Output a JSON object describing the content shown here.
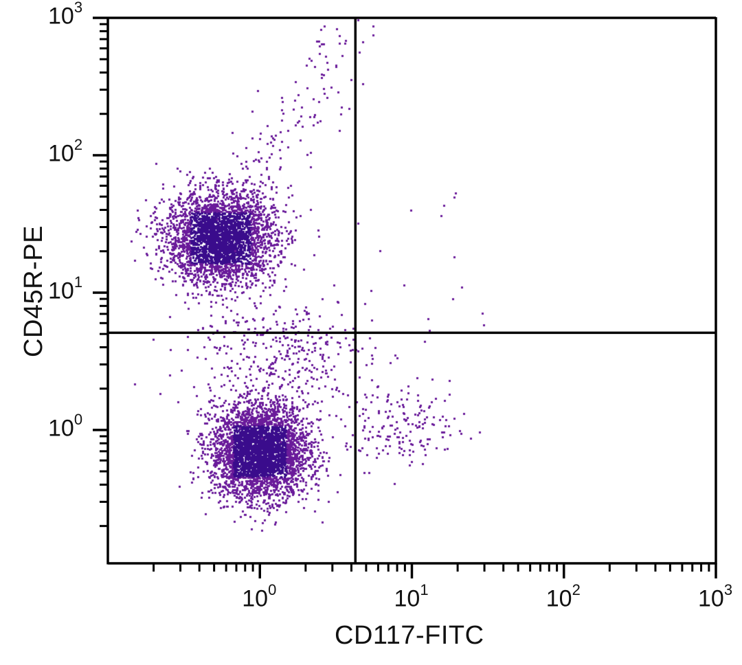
{
  "chart_data": {
    "type": "scatter",
    "subtype": "flow-cytometry-dot-plot",
    "title": "",
    "xlabel": "CD117-FITC",
    "ylabel": "CD45R-PE",
    "xscale": "log",
    "yscale": "log",
    "xlim": [
      0.1,
      1000
    ],
    "ylim": [
      0.107,
      1000
    ],
    "x_ticks": [
      {
        "value": 1,
        "base": "10",
        "exp": "0"
      },
      {
        "value": 10,
        "base": "10",
        "exp": "1"
      },
      {
        "value": 100,
        "base": "10",
        "exp": "2"
      },
      {
        "value": 1000,
        "base": "10",
        "exp": "3"
      }
    ],
    "y_ticks": [
      {
        "value": 1,
        "base": "10",
        "exp": "0"
      },
      {
        "value": 10,
        "base": "10",
        "exp": "1"
      },
      {
        "value": 100,
        "base": "10",
        "exp": "2"
      },
      {
        "value": 1000,
        "base": "10",
        "exp": "3"
      }
    ],
    "grid": false,
    "legend": null,
    "point_color": "#6a1b9a",
    "dense_color": "#3a0c8c",
    "quadrant_gates": {
      "x": 4.25,
      "y": 5.1,
      "color": "#000000"
    },
    "populations": [
      {
        "name": "CD45R+ CD117- (upper-left cluster)",
        "center": [
          0.55,
          25
        ],
        "spread_log": [
          0.18,
          0.17
        ],
        "count": 3200
      },
      {
        "name": "CD45R- CD117- (lower-left cluster)",
        "center": [
          1.0,
          0.7
        ],
        "spread_log": [
          0.16,
          0.17
        ],
        "count": 3600
      },
      {
        "name": "CD45R- CD117+ (lower-right cluster)",
        "center": [
          9.0,
          1.05
        ],
        "spread_log": [
          0.2,
          0.14
        ],
        "count": 170
      },
      {
        "name": "scatter between clusters",
        "center": [
          1.3,
          3.5
        ],
        "spread_log": [
          0.3,
          0.22
        ],
        "count": 380
      },
      {
        "name": "diagonal tail upward",
        "center": [
          2.0,
          150
        ],
        "spread_log": [
          0.2,
          0.35
        ],
        "count": 140
      },
      {
        "name": "upper-right sparse",
        "center": [
          12,
          15
        ],
        "spread_log": [
          0.3,
          0.5
        ],
        "count": 18
      }
    ]
  },
  "axes": {
    "x_title": "CD117-FITC",
    "y_title": "CD45R-PE"
  }
}
